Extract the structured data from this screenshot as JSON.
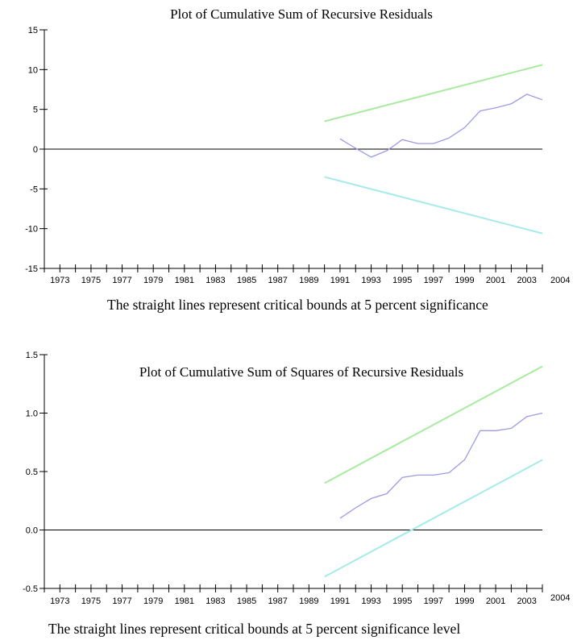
{
  "chart_data": [
    {
      "type": "line",
      "title": "Plot of Cumulative Sum of Recursive Residuals",
      "caption": "The straight lines represent critical bounds at 5 percent significance",
      "xlim": [
        1972,
        2004
      ],
      "ylim": [
        -15,
        15
      ],
      "y_ticks": [
        15,
        10,
        5,
        0,
        -5,
        -10,
        -15
      ],
      "y_tick_labels": [
        "15",
        "10",
        "5",
        "0",
        "-5",
        "-10",
        "-15"
      ],
      "x_tick_labels": [
        "1973",
        "1975",
        "1977",
        "1979",
        "1981",
        "1983",
        "1985",
        "1987",
        "1989",
        "1991",
        "1993",
        "1995",
        "1997",
        "1999",
        "2001",
        "2003",
        "2004"
      ],
      "x_label_years": [
        1973,
        1975,
        1977,
        1979,
        1981,
        1983,
        1985,
        1987,
        1989,
        1991,
        1993,
        1995,
        1997,
        1999,
        2001,
        2003,
        2004
      ],
      "grid": false,
      "zero_line": true,
      "series": [
        {
          "color": "#9b9be6",
          "x": [
            1991,
            1992,
            1993,
            1994,
            1995,
            1996,
            1997,
            1998,
            1999,
            2000,
            2001,
            2002,
            2003,
            2004
          ],
          "y": [
            1.3,
            0.1,
            -1.0,
            -0.2,
            1.2,
            0.7,
            0.7,
            1.4,
            2.7,
            4.8,
            5.2,
            5.7,
            6.9,
            6.2
          ]
        },
        {
          "color": "#a8eba0",
          "x": [
            1990,
            2004
          ],
          "y": [
            3.5,
            10.6
          ]
        },
        {
          "color": "#a6ebeb",
          "x": [
            1990,
            2004
          ],
          "y": [
            -3.5,
            -10.6
          ]
        }
      ]
    },
    {
      "type": "line",
      "title": "Plot of Cumulative Sum of Squares of Recursive Residuals",
      "caption": "The straight lines represent critical bounds at 5 percent significance level",
      "xlim": [
        1972,
        2004
      ],
      "ylim": [
        -0.5,
        1.5
      ],
      "y_ticks": [
        1.5,
        1.0,
        0.5,
        0.0,
        -0.5
      ],
      "y_tick_labels": [
        "1.5",
        "1.0",
        "0.5",
        "0.0",
        "-0.5"
      ],
      "x_tick_labels": [
        "1973",
        "1975",
        "1977",
        "1979",
        "1981",
        "1983",
        "1985",
        "1987",
        "1989",
        "1991",
        "1993",
        "1995",
        "1997",
        "1999",
        "2001",
        "2003",
        "2004"
      ],
      "x_label_years": [
        1973,
        1975,
        1977,
        1979,
        1981,
        1983,
        1985,
        1987,
        1989,
        1991,
        1993,
        1995,
        1997,
        1999,
        2001,
        2003,
        2004
      ],
      "grid": false,
      "zero_line": true,
      "series": [
        {
          "color": "#9b9be6",
          "x": [
            1991,
            1992,
            1993,
            1994,
            1995,
            1996,
            1997,
            1998,
            1999,
            2000,
            2001,
            2002,
            2003,
            2004
          ],
          "y": [
            0.1,
            0.19,
            0.27,
            0.31,
            0.45,
            0.47,
            0.47,
            0.49,
            0.6,
            0.85,
            0.85,
            0.87,
            0.97,
            1.0
          ]
        },
        {
          "color": "#a8eba0",
          "x": [
            1990,
            2004
          ],
          "y": [
            0.4,
            1.4
          ]
        },
        {
          "color": "#a6ebeb",
          "x": [
            1990,
            2004
          ],
          "y": [
            -0.4,
            0.6
          ]
        }
      ]
    }
  ]
}
